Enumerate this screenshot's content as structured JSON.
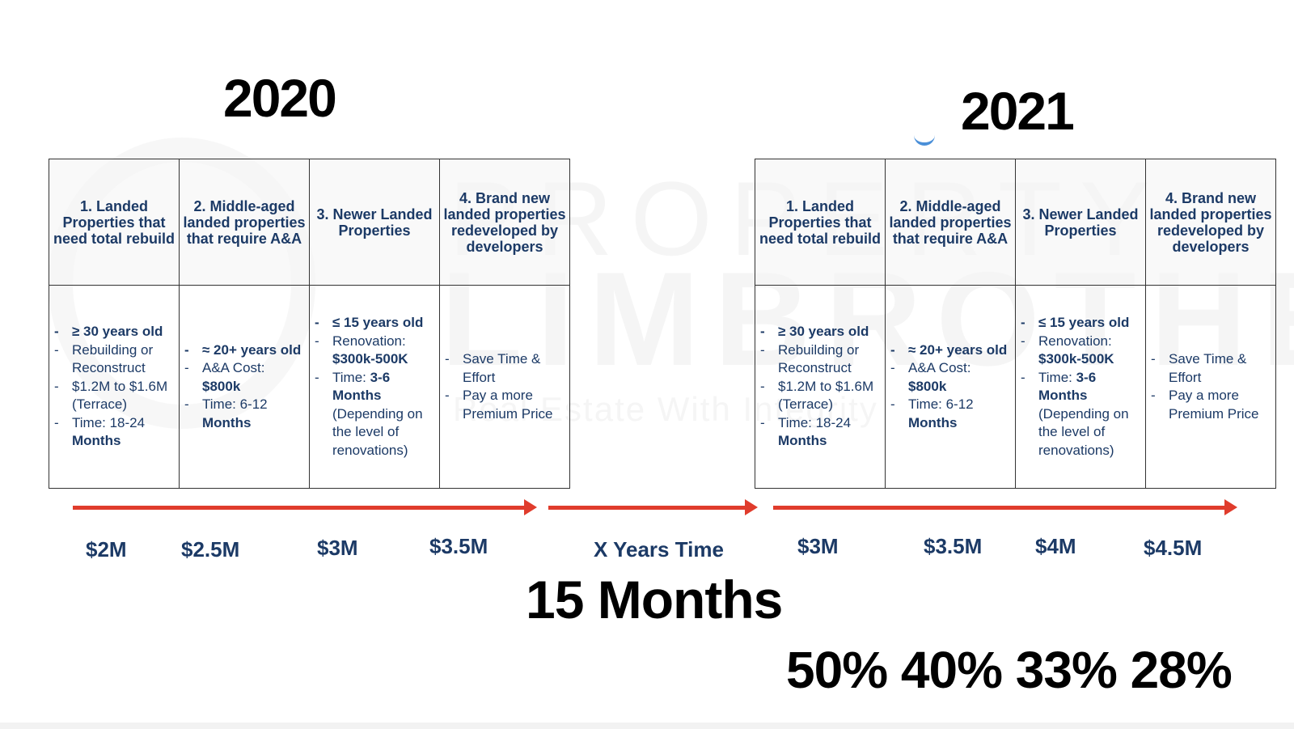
{
  "years": {
    "left": "2020",
    "right": "2021"
  },
  "watermark": {
    "line1": "PROPERTY",
    "line2": "LIMBROTHERS",
    "tagline": "Real Estate With Integrity"
  },
  "categories": [
    "1. Landed Properties that need total rebuild",
    "2. Middle-aged landed properties that require A&A",
    "3. Newer Landed Properties",
    "4. Brand new landed properties redeveloped by developers"
  ],
  "details": {
    "col1": {
      "age": "≥ 30 years old",
      "rebuild": "Rebuilding or Reconstruct",
      "cost": "$1.2M to $1.6M (Terrace)",
      "time_label": "Time: 18-24 ",
      "time_value": "Months"
    },
    "col2": {
      "age": "≈ 20+ years old",
      "cost_label": "A&A Cost: ",
      "cost_value": "$800k",
      "time_label": "Time: 6-12 ",
      "time_value": "Months"
    },
    "col3": {
      "age": "≤ 15 years old",
      "renovation_label": "Renovation: ",
      "renovation_value": "$300k-500K",
      "time_label": "Time: ",
      "time_value": "3-6 Months",
      "note": " (Depending on the level of renovations)"
    },
    "col4": {
      "benefit1": "Save Time & Effort",
      "benefit2": "Pay a more Premium Price"
    }
  },
  "prices_2020": [
    "$2M",
    "$2.5M",
    "$3M",
    "$3.5M"
  ],
  "middle_label": "X Years Time",
  "prices_2021": [
    "$3M",
    "$3.5M",
    "$4M",
    "$4.5M"
  ],
  "duration": "15 Months",
  "percentages": "50% 40% 33% 28%"
}
